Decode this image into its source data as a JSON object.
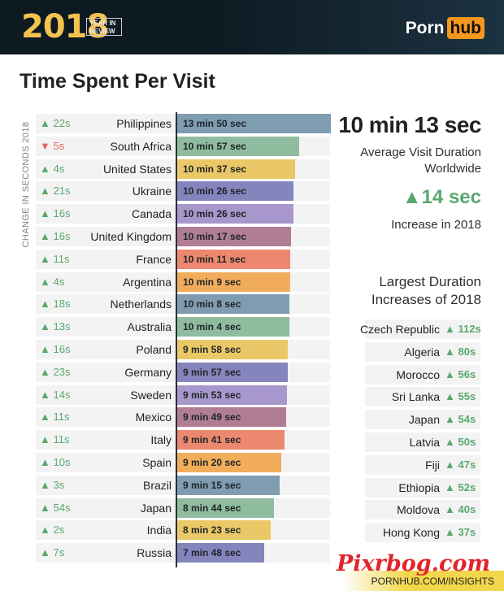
{
  "header": {
    "year": "2018",
    "year_in_review": [
      "YEAR IN",
      "REVIEW"
    ],
    "brand_left": "Porn",
    "brand_right": "hub"
  },
  "title": "Time Spent Per Visit",
  "footer": {
    "watermark": "Pixrbog.com",
    "site": "PORNHUB.COM/INSIGHTS"
  },
  "colors": {
    "up": "#5aa86f",
    "down": "#e0695f",
    "brand": "#f7971d"
  },
  "chart_data": {
    "type": "bar",
    "orientation": "horizontal",
    "ylabel": "CHANGE IN SECONDS 2018",
    "xlim": [
      0,
      830
    ],
    "categories": [
      "Philippines",
      "South Africa",
      "United States",
      "Ukraine",
      "Canada",
      "United Kingdom",
      "France",
      "Argentina",
      "Netherlands",
      "Australia",
      "Poland",
      "Germany",
      "Sweden",
      "Mexico",
      "Italy",
      "Spain",
      "Brazil",
      "Japan",
      "India",
      "Russia"
    ],
    "values": [
      830,
      657,
      637,
      626,
      626,
      617,
      611,
      609,
      608,
      604,
      598,
      597,
      593,
      589,
      581,
      560,
      555,
      524,
      503,
      468
    ],
    "value_labels": [
      "13 min 50 sec",
      "10 min 57 sec",
      "10 min 37 sec",
      "10 min 26 sec",
      "10 min 26 sec",
      "10 min 17 sec",
      "10 min 11 sec",
      "10 min 9 sec",
      "10 min 8 sec",
      "10 min 4 sec",
      "9 min 58 sec",
      "9 min 57 sec",
      "9 min 53 sec",
      "9 min 49 sec",
      "9 min 41 sec",
      "9 min 20 sec",
      "9 min 15 sec",
      "8 min 44 sec",
      "8 min 23 sec",
      "7 min 48 sec"
    ],
    "changes": [
      "▲ 22s",
      "▼ 5s",
      "▲ 4s",
      "▲ 21s",
      "▲ 16s",
      "▲ 16s",
      "▲ 11s",
      "▲ 4s",
      "▲ 18s",
      "▲ 13s",
      "▲ 16s",
      "▲ 23s",
      "▲ 14s",
      "▲ 11s",
      "▲ 11s",
      "▲ 10s",
      "▲ 3s",
      "▲ 54s",
      "▲ 2s",
      "▲ 7s"
    ],
    "bar_colors": [
      "#7f9cb1",
      "#8fbc9f",
      "#ebc867",
      "#8584bd",
      "#a797cc",
      "#b07d93",
      "#ec8870",
      "#f2ad5c",
      "#7f9cb1",
      "#8fbc9f",
      "#ebc867",
      "#8584bd",
      "#a797cc",
      "#b07d93",
      "#ec8870",
      "#f2ad5c",
      "#7f9cb1",
      "#8fbc9f",
      "#ebc867",
      "#8584bd"
    ],
    "summary": {
      "average_value": "10 min 13 sec",
      "average_label": "Average Visit Duration Worldwide",
      "increase_value": "▲14 sec",
      "increase_label": "Increase in 2018"
    },
    "largest_increases": {
      "title": "Largest Duration Increases of 2018",
      "items": [
        {
          "country": "Czech Republic",
          "change": "▲ 112s"
        },
        {
          "country": "Algeria",
          "change": "▲ 80s"
        },
        {
          "country": "Morocco",
          "change": "▲ 56s"
        },
        {
          "country": "Sri Lanka",
          "change": "▲ 55s"
        },
        {
          "country": "Japan",
          "change": "▲ 54s"
        },
        {
          "country": "Latvia",
          "change": "▲ 50s"
        },
        {
          "country": "Fiji",
          "change": "▲ 47s"
        },
        {
          "country": "Ethiopia",
          "change": "▲ 52s"
        },
        {
          "country": "Moldova",
          "change": "▲ 40s"
        },
        {
          "country": "Hong Kong",
          "change": "▲ 37s"
        }
      ]
    }
  }
}
